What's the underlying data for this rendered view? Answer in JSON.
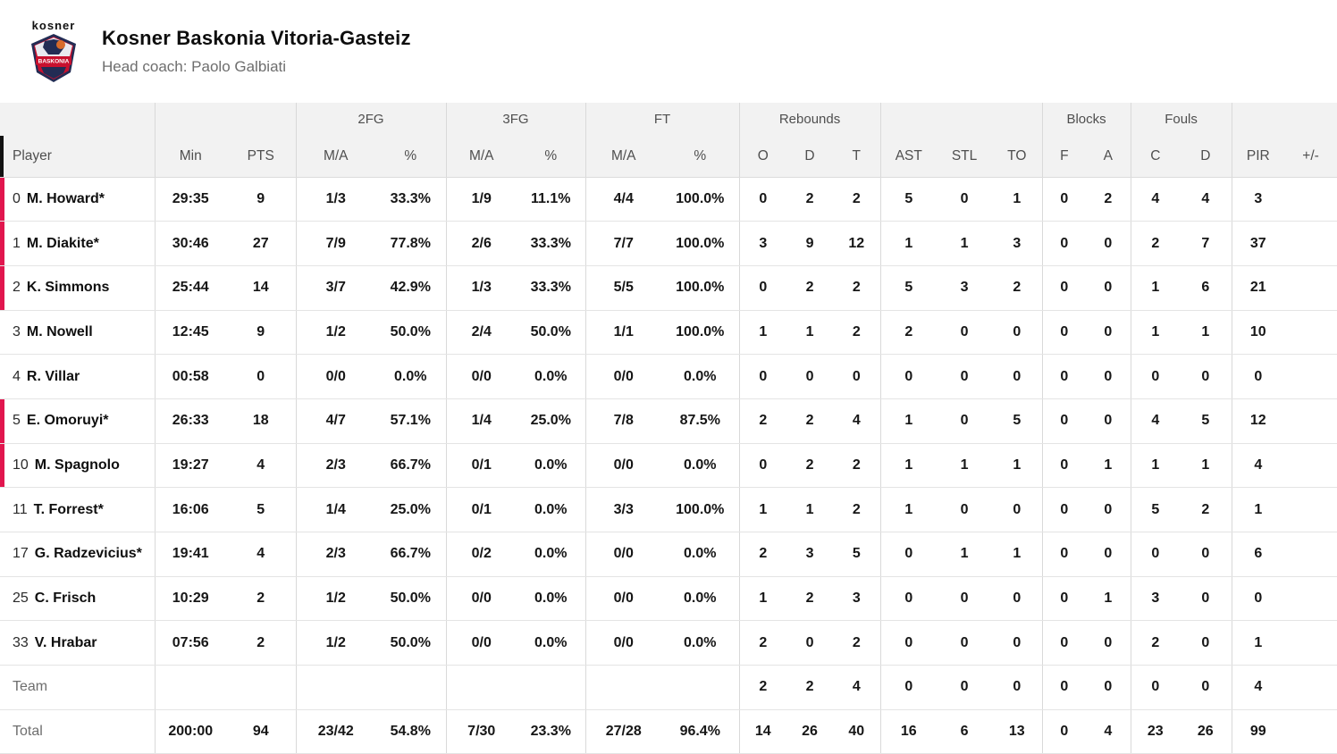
{
  "team": {
    "name": "Kosner Baskonia Vitoria-Gasteiz",
    "coach": "Head coach: Paolo Galbiati",
    "logo_brand": "kosner",
    "logo_shield_text": "BASKONIA"
  },
  "colors": {
    "on_court_red": "#e1164e",
    "header_bg": "#f2f2f2",
    "logo_navy": "#232c54",
    "logo_red": "#c8102e"
  },
  "table": {
    "group_headers": {
      "fg2": "2FG",
      "fg3": "3FG",
      "ft": "FT",
      "rebounds": "Rebounds",
      "blocks": "Blocks",
      "fouls": "Fouls"
    },
    "columns": [
      "Player",
      "Min",
      "PTS",
      "M/A",
      "%",
      "M/A",
      "%",
      "M/A",
      "%",
      "O",
      "D",
      "T",
      "AST",
      "STL",
      "TO",
      "F",
      "A",
      "C",
      "D",
      "PIR",
      "+/-"
    ],
    "rows": [
      {
        "number": "0",
        "name": "M. Howard*",
        "on_court": true,
        "cells": [
          "29:35",
          "9",
          "1/3",
          "33.3%",
          "1/9",
          "11.1%",
          "4/4",
          "100.0%",
          "0",
          "2",
          "2",
          "5",
          "0",
          "1",
          "0",
          "2",
          "4",
          "4",
          "3",
          ""
        ]
      },
      {
        "number": "1",
        "name": "M. Diakite*",
        "on_court": true,
        "cells": [
          "30:46",
          "27",
          "7/9",
          "77.8%",
          "2/6",
          "33.3%",
          "7/7",
          "100.0%",
          "3",
          "9",
          "12",
          "1",
          "1",
          "3",
          "0",
          "0",
          "2",
          "7",
          "37",
          ""
        ]
      },
      {
        "number": "2",
        "name": "K. Simmons",
        "on_court": true,
        "cells": [
          "25:44",
          "14",
          "3/7",
          "42.9%",
          "1/3",
          "33.3%",
          "5/5",
          "100.0%",
          "0",
          "2",
          "2",
          "5",
          "3",
          "2",
          "0",
          "0",
          "1",
          "6",
          "21",
          ""
        ]
      },
      {
        "number": "3",
        "name": "M. Nowell",
        "on_court": false,
        "cells": [
          "12:45",
          "9",
          "1/2",
          "50.0%",
          "2/4",
          "50.0%",
          "1/1",
          "100.0%",
          "1",
          "1",
          "2",
          "2",
          "0",
          "0",
          "0",
          "0",
          "1",
          "1",
          "10",
          ""
        ]
      },
      {
        "number": "4",
        "name": "R. Villar",
        "on_court": false,
        "cells": [
          "00:58",
          "0",
          "0/0",
          "0.0%",
          "0/0",
          "0.0%",
          "0/0",
          "0.0%",
          "0",
          "0",
          "0",
          "0",
          "0",
          "0",
          "0",
          "0",
          "0",
          "0",
          "0",
          ""
        ]
      },
      {
        "number": "5",
        "name": "E. Omoruyi*",
        "on_court": true,
        "cells": [
          "26:33",
          "18",
          "4/7",
          "57.1%",
          "1/4",
          "25.0%",
          "7/8",
          "87.5%",
          "2",
          "2",
          "4",
          "1",
          "0",
          "5",
          "0",
          "0",
          "4",
          "5",
          "12",
          ""
        ]
      },
      {
        "number": "10",
        "name": "M. Spagnolo",
        "on_court": true,
        "cells": [
          "19:27",
          "4",
          "2/3",
          "66.7%",
          "0/1",
          "0.0%",
          "0/0",
          "0.0%",
          "0",
          "2",
          "2",
          "1",
          "1",
          "1",
          "0",
          "1",
          "1",
          "1",
          "4",
          ""
        ]
      },
      {
        "number": "11",
        "name": "T. Forrest*",
        "on_court": false,
        "cells": [
          "16:06",
          "5",
          "1/4",
          "25.0%",
          "0/1",
          "0.0%",
          "3/3",
          "100.0%",
          "1",
          "1",
          "2",
          "1",
          "0",
          "0",
          "0",
          "0",
          "5",
          "2",
          "1",
          ""
        ]
      },
      {
        "number": "17",
        "name": "G. Radzevicius*",
        "on_court": false,
        "cells": [
          "19:41",
          "4",
          "2/3",
          "66.7%",
          "0/2",
          "0.0%",
          "0/0",
          "0.0%",
          "2",
          "3",
          "5",
          "0",
          "1",
          "1",
          "0",
          "0",
          "0",
          "0",
          "6",
          ""
        ]
      },
      {
        "number": "25",
        "name": "C. Frisch",
        "on_court": false,
        "cells": [
          "10:29",
          "2",
          "1/2",
          "50.0%",
          "0/0",
          "0.0%",
          "0/0",
          "0.0%",
          "1",
          "2",
          "3",
          "0",
          "0",
          "0",
          "0",
          "1",
          "3",
          "0",
          "0",
          ""
        ]
      },
      {
        "number": "33",
        "name": "V. Hrabar",
        "on_court": false,
        "cells": [
          "07:56",
          "2",
          "1/2",
          "50.0%",
          "0/0",
          "0.0%",
          "0/0",
          "0.0%",
          "2",
          "0",
          "2",
          "0",
          "0",
          "0",
          "0",
          "0",
          "2",
          "0",
          "1",
          ""
        ]
      }
    ],
    "team_row": {
      "label": "Team",
      "cells": [
        "",
        "",
        "",
        "",
        "",
        "",
        "",
        "",
        "2",
        "2",
        "4",
        "0",
        "0",
        "0",
        "0",
        "0",
        "0",
        "0",
        "4",
        ""
      ]
    },
    "total_row": {
      "label": "Total",
      "cells": [
        "200:00",
        "94",
        "23/42",
        "54.8%",
        "7/30",
        "23.3%",
        "27/28",
        "96.4%",
        "14",
        "26",
        "40",
        "16",
        "6",
        "13",
        "0",
        "4",
        "23",
        "26",
        "99",
        ""
      ]
    }
  }
}
